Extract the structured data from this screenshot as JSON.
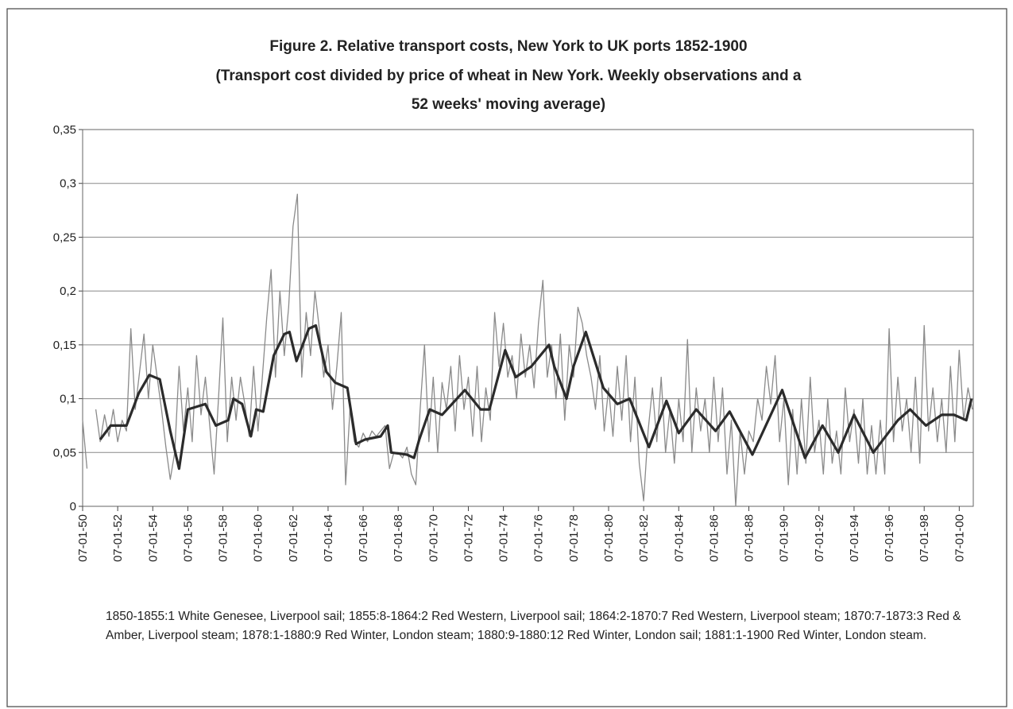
{
  "chart_data": {
    "type": "line",
    "title": [
      "Figure 2. Relative transport costs, New York to UK ports 1852-1900",
      "(Transport cost divided by price of wheat in New York. Weekly observations and a",
      "52 weeks' moving average)"
    ],
    "xlim": [
      1850.5,
      1901.3
    ],
    "ylim": [
      0,
      0.35
    ],
    "yticks": [
      0,
      {
        "value": 0.05,
        "label": "0,05"
      },
      {
        "value": 0.1,
        "label": "0,1"
      },
      {
        "value": 0.15,
        "label": "0,15"
      },
      {
        "value": 0.2,
        "label": "0,2"
      },
      {
        "value": 0.25,
        "label": "0,25"
      },
      {
        "value": 0.3,
        "label": "0,3"
      },
      {
        "value": 0.35,
        "label": "0,35"
      }
    ],
    "xticks": [
      {
        "value": 1850.5,
        "label": "07-01-50"
      },
      {
        "value": 1852.5,
        "label": "07-01-52"
      },
      {
        "value": 1854.5,
        "label": "07-01-54"
      },
      {
        "value": 1856.5,
        "label": "07-01-56"
      },
      {
        "value": 1858.5,
        "label": "07-01-58"
      },
      {
        "value": 1860.5,
        "label": "07-01-60"
      },
      {
        "value": 1862.5,
        "label": "07-01-62"
      },
      {
        "value": 1864.5,
        "label": "07-01-64"
      },
      {
        "value": 1866.5,
        "label": "07-01-66"
      },
      {
        "value": 1868.5,
        "label": "07-01-68"
      },
      {
        "value": 1870.5,
        "label": "07-01-70"
      },
      {
        "value": 1872.5,
        "label": "07-01-72"
      },
      {
        "value": 1874.5,
        "label": "07-01-74"
      },
      {
        "value": 1876.5,
        "label": "07-01-76"
      },
      {
        "value": 1878.5,
        "label": "07-01-78"
      },
      {
        "value": 1880.5,
        "label": "07-01-80"
      },
      {
        "value": 1882.5,
        "label": "07-01-82"
      },
      {
        "value": 1884.5,
        "label": "07-01-84"
      },
      {
        "value": 1886.5,
        "label": "07-01-86"
      },
      {
        "value": 1888.5,
        "label": "07-01-88"
      },
      {
        "value": 1890.5,
        "label": "07-01-90"
      },
      {
        "value": 1892.5,
        "label": "07-01-92"
      },
      {
        "value": 1894.5,
        "label": "07-01-94"
      },
      {
        "value": 1896.5,
        "label": "07-01-96"
      },
      {
        "value": 1898.5,
        "label": "07-01-98"
      },
      {
        "value": 1900.5,
        "label": "07-01-00"
      }
    ],
    "grid": true,
    "series": [
      {
        "color": "#8a8a8a",
        "width": 1.3,
        "x": [
          1850.5,
          1850.75,
          1851,
          1851.25,
          1851.5,
          1851.75,
          1852,
          1852.25,
          1852.5,
          1852.75,
          1853,
          1853.25,
          1853.5,
          1853.75,
          1854,
          1854.25,
          1854.5,
          1854.75,
          1855,
          1855.25,
          1855.5,
          1855.75,
          1856,
          1856.25,
          1856.5,
          1856.75,
          1857,
          1857.25,
          1857.5,
          1857.75,
          1858,
          1858.25,
          1858.5,
          1858.75,
          1859,
          1859.25,
          1859.5,
          1859.75,
          1860,
          1860.25,
          1860.5,
          1860.75,
          1861,
          1861.25,
          1861.5,
          1861.75,
          1862,
          1862.25,
          1862.5,
          1862.75,
          1863,
          1863.25,
          1863.5,
          1863.75,
          1864,
          1864.25,
          1864.5,
          1864.75,
          1865,
          1865.25,
          1865.5,
          1865.75,
          1866,
          1866.25,
          1866.5,
          1866.75,
          1867,
          1867.25,
          1867.5,
          1867.75,
          1868,
          1868.25,
          1868.5,
          1868.75,
          1869,
          1869.25,
          1869.5,
          1869.75,
          1870,
          1870.25,
          1870.5,
          1870.75,
          1871,
          1871.25,
          1871.5,
          1871.75,
          1872,
          1872.25,
          1872.5,
          1872.75,
          1873,
          1873.25,
          1873.5,
          1873.75,
          1874,
          1874.25,
          1874.5,
          1874.75,
          1875,
          1875.25,
          1875.5,
          1875.75,
          1876,
          1876.25,
          1876.5,
          1876.75,
          1877,
          1877.25,
          1877.5,
          1877.75,
          1878,
          1878.25,
          1878.5,
          1878.75,
          1879,
          1879.25,
          1879.5,
          1879.75,
          1880,
          1880.25,
          1880.5,
          1880.75,
          1881,
          1881.25,
          1881.5,
          1881.75,
          1882,
          1882.25,
          1882.5,
          1882.75,
          1883,
          1883.25,
          1883.5,
          1883.75,
          1884,
          1884.25,
          1884.5,
          1884.75,
          1885,
          1885.25,
          1885.5,
          1885.75,
          1886,
          1886.25,
          1886.5,
          1886.75,
          1887,
          1887.25,
          1887.5,
          1887.75,
          1888,
          1888.25,
          1888.5,
          1888.75,
          1889,
          1889.25,
          1889.5,
          1889.75,
          1890,
          1890.25,
          1890.5,
          1890.75,
          1891,
          1891.25,
          1891.5,
          1891.75,
          1892,
          1892.25,
          1892.5,
          1892.75,
          1893,
          1893.25,
          1893.5,
          1893.75,
          1894,
          1894.25,
          1894.5,
          1894.75,
          1895,
          1895.25,
          1895.5,
          1895.75,
          1896,
          1896.25,
          1896.5,
          1896.75,
          1897,
          1897.25,
          1897.5,
          1897.75,
          1898,
          1898.25,
          1898.5,
          1898.75,
          1899,
          1899.25,
          1899.5,
          1899.75,
          1900,
          1900.25,
          1900.5,
          1900.75,
          1901,
          1901.25
        ],
        "values": [
          0.08,
          0.035,
          null,
          0.09,
          0.06,
          0.085,
          0.065,
          0.09,
          0.06,
          0.08,
          0.07,
          0.165,
          0.09,
          0.125,
          0.16,
          0.1,
          0.15,
          0.12,
          0.09,
          0.055,
          0.025,
          0.05,
          0.13,
          0.07,
          0.11,
          0.06,
          0.14,
          0.085,
          0.12,
          0.075,
          0.03,
          0.1,
          0.175,
          0.06,
          0.12,
          0.08,
          0.12,
          0.095,
          0.065,
          0.13,
          0.07,
          0.12,
          0.175,
          0.22,
          0.12,
          0.2,
          0.14,
          0.185,
          0.26,
          0.29,
          0.12,
          0.18,
          0.14,
          0.2,
          0.165,
          0.12,
          0.15,
          0.09,
          0.13,
          0.18,
          0.02,
          0.09,
          0.06,
          0.055,
          0.068,
          0.06,
          0.07,
          0.065,
          0.07,
          0.075,
          0.035,
          0.05,
          0.05,
          0.045,
          0.055,
          0.03,
          0.02,
          0.09,
          0.15,
          0.06,
          0.12,
          0.05,
          0.115,
          0.09,
          0.13,
          0.07,
          0.14,
          0.09,
          0.12,
          0.065,
          0.13,
          0.06,
          0.11,
          0.08,
          0.18,
          0.13,
          0.17,
          0.12,
          0.14,
          0.1,
          0.16,
          0.12,
          0.15,
          0.11,
          0.17,
          0.21,
          0.12,
          0.15,
          0.1,
          0.16,
          0.08,
          0.15,
          0.12,
          0.185,
          0.17,
          0.14,
          0.12,
          0.09,
          0.14,
          0.07,
          0.11,
          0.065,
          0.13,
          0.08,
          0.14,
          0.06,
          0.12,
          0.04,
          0.005,
          0.07,
          0.11,
          0.06,
          0.12,
          0.05,
          0.09,
          0.04,
          0.1,
          0.06,
          0.155,
          0.05,
          0.11,
          0.07,
          0.1,
          0.05,
          0.12,
          0.06,
          0.11,
          0.03,
          0.08,
          0,
          0.07,
          0.03,
          0.07,
          0.06,
          0.1,
          0.08,
          0.13,
          0.095,
          0.14,
          0.06,
          0.1,
          0.02,
          0.09,
          0.03,
          0.1,
          0.04,
          0.12,
          0.05,
          0.08,
          0.03,
          0.1,
          0.04,
          0.07,
          0.03,
          0.11,
          0.06,
          0.09,
          0.04,
          0.1,
          0.03,
          0.075,
          0.03,
          0.08,
          0.03,
          0.165,
          0.06,
          0.12,
          0.07,
          0.1,
          0.05,
          0.12,
          0.04,
          0.168,
          0.07,
          0.11,
          0.06,
          0.1,
          0.05,
          0.13,
          0.06,
          0.145,
          0.08,
          0.11,
          0.09
        ]
      },
      {
        "color": "#2b2b2b",
        "width": 3.2,
        "x": [
          1851.5,
          1852.1,
          1853,
          1853.7,
          1854.3,
          1854.9,
          1855.5,
          1856,
          1856.5,
          1857.5,
          1858.1,
          1858.8,
          1859.1,
          1859.6,
          1860.1,
          1860.4,
          1860.8,
          1861.4,
          1862,
          1862.3,
          1862.7,
          1863.4,
          1863.8,
          1864.4,
          1864.9,
          1865.6,
          1866.1,
          1866.6,
          1867.5,
          1867.9,
          1868.1,
          1869,
          1869.4,
          1869.7,
          1870.3,
          1871,
          1872.3,
          1873.2,
          1873.7,
          1874.6,
          1875.2,
          1876.1,
          1877.1,
          1877.4,
          1878.1,
          1878.5,
          1879.2,
          1880.2,
          1881,
          1881.7,
          1882.8,
          1883.8,
          1884.5,
          1885.5,
          1886.6,
          1887.4,
          1888.7,
          1890.4,
          1891.7,
          1892.7,
          1893.6,
          1894.5,
          1895.6,
          1897,
          1897.7,
          1898.6,
          1899.5,
          1900.2,
          1900.9,
          1901.2
        ],
        "values": [
          0.062,
          0.075,
          0.075,
          0.105,
          0.122,
          0.118,
          0.07,
          0.035,
          0.09,
          0.095,
          0.075,
          0.08,
          0.1,
          0.095,
          0.065,
          0.09,
          0.088,
          0.14,
          0.16,
          0.162,
          0.135,
          0.165,
          0.168,
          0.125,
          0.115,
          0.11,
          0.058,
          0.062,
          0.065,
          0.075,
          0.05,
          0.048,
          0.045,
          0.062,
          0.09,
          0.085,
          0.108,
          0.09,
          0.09,
          0.145,
          0.12,
          0.13,
          0.15,
          0.13,
          0.1,
          0.13,
          0.162,
          0.11,
          0.095,
          0.1,
          0.055,
          0.098,
          0.068,
          0.09,
          0.07,
          0.088,
          0.048,
          0.108,
          0.045,
          0.075,
          0.05,
          0.085,
          0.05,
          0.08,
          0.09,
          0.075,
          0.085,
          0.085,
          0.08,
          0.1
        ]
      }
    ],
    "note": "1850-1855:1 White Genesee, Liverpool sail; 1855:8-1864:2 Red Western, Liverpool sail; 1864:2-1870:7 Red Western, Liverpool steam; 1870:7-1873:3 Red & Amber, Liverpool steam; 1878:1-1880:9 Red Winter, London steam; 1880:9-1880:12 Red Winter, London sail; 1881:1-1900 Red Winter, London steam."
  }
}
